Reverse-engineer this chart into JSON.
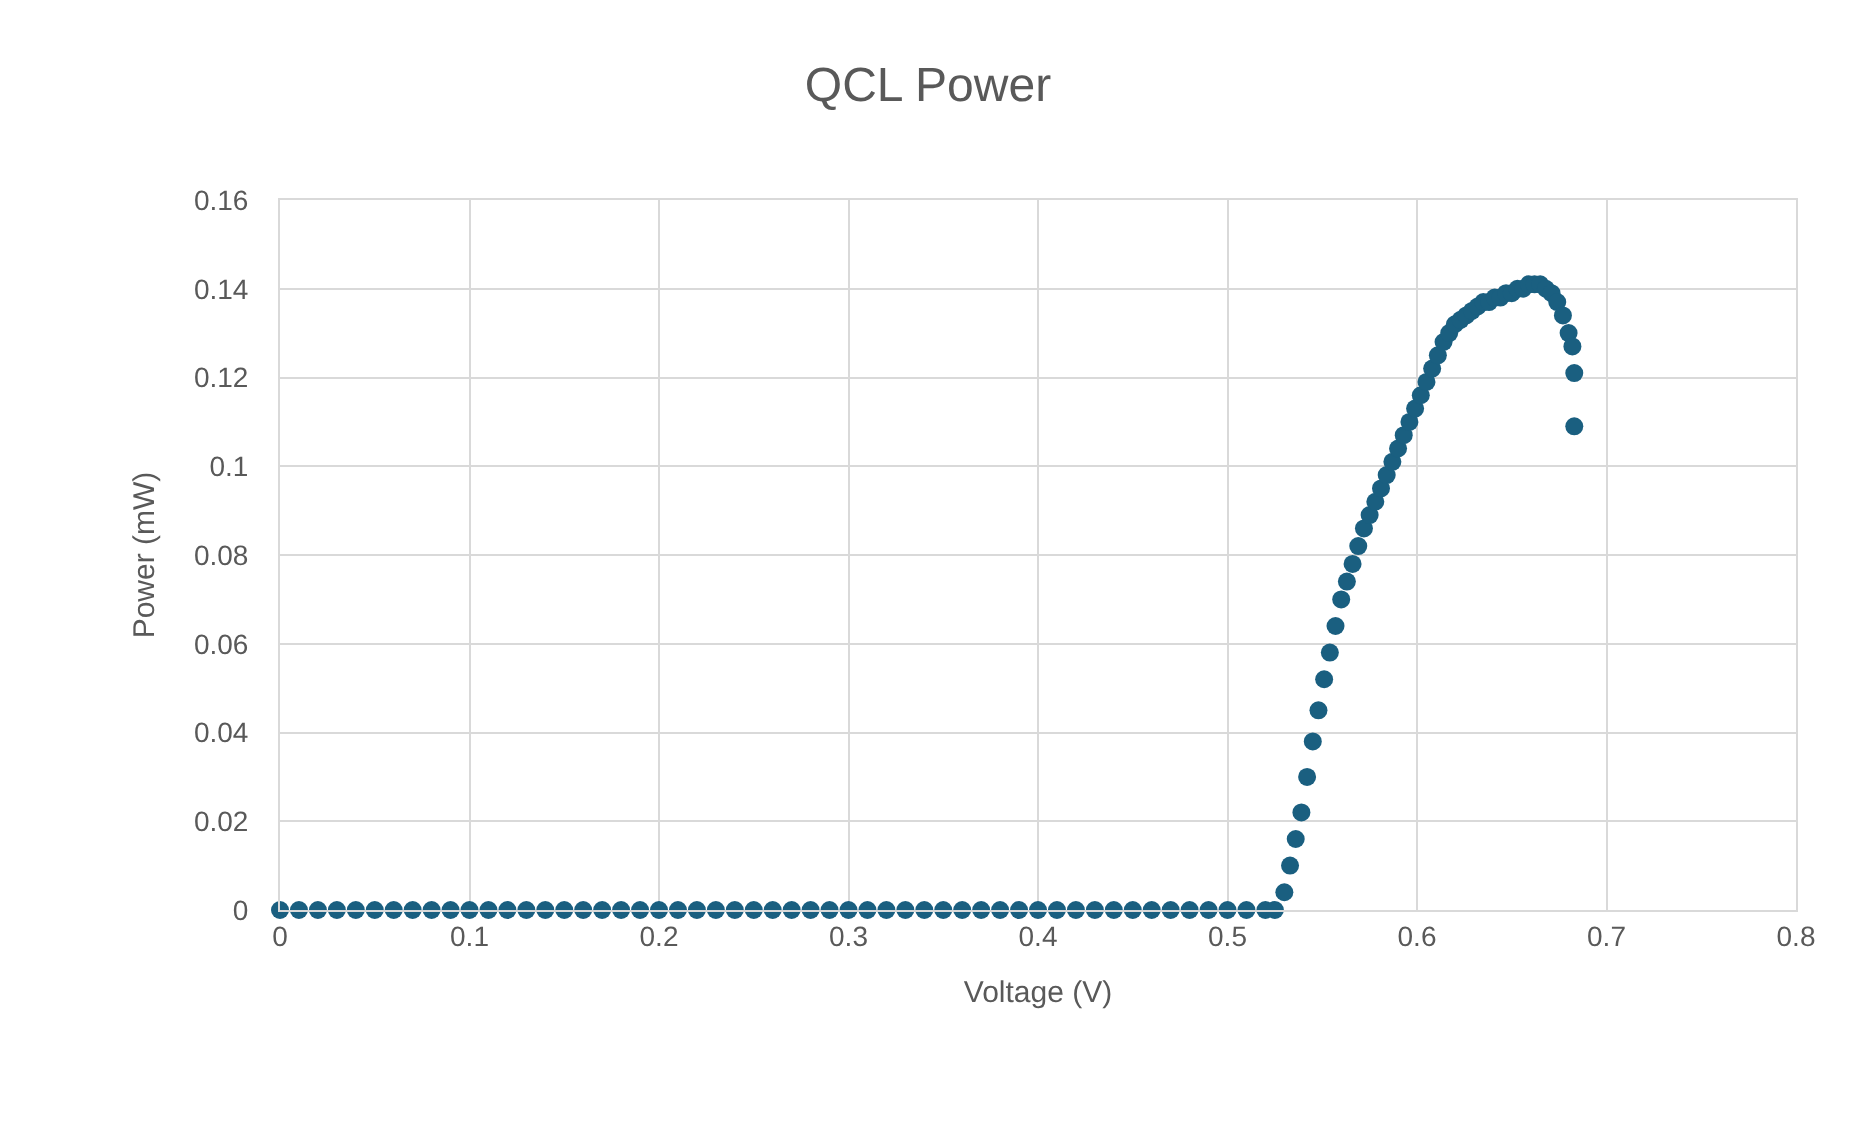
{
  "chart_data": {
    "type": "scatter",
    "title": "QCL Power",
    "xlabel": "Voltage (V)",
    "ylabel": "Power (mW)",
    "x": [
      0,
      0.01,
      0.02,
      0.03,
      0.04,
      0.05,
      0.06,
      0.07,
      0.08,
      0.09,
      0.1,
      0.11,
      0.12,
      0.13,
      0.14,
      0.15,
      0.16,
      0.17,
      0.18,
      0.19,
      0.2,
      0.21,
      0.22,
      0.23,
      0.24,
      0.25,
      0.26,
      0.27,
      0.28,
      0.29,
      0.3,
      0.31,
      0.32,
      0.33,
      0.34,
      0.35,
      0.36,
      0.37,
      0.38,
      0.39,
      0.4,
      0.41,
      0.42,
      0.43,
      0.44,
      0.45,
      0.46,
      0.47,
      0.48,
      0.49,
      0.5,
      0.51,
      0.52,
      0.525,
      0.53,
      0.533,
      0.536,
      0.539,
      0.542,
      0.545,
      0.548,
      0.551,
      0.554,
      0.557,
      0.56,
      0.563,
      0.566,
      0.569,
      0.572,
      0.575,
      0.578,
      0.581,
      0.584,
      0.587,
      0.59,
      0.593,
      0.596,
      0.599,
      0.602,
      0.605,
      0.608,
      0.611,
      0.614,
      0.617,
      0.62,
      0.623,
      0.626,
      0.629,
      0.632,
      0.635,
      0.638,
      0.641,
      0.644,
      0.647,
      0.65,
      0.653,
      0.656,
      0.659,
      0.662,
      0.665,
      0.668,
      0.671,
      0.674,
      0.677,
      0.68,
      0.682,
      0.683,
      0.683
    ],
    "values": [
      0,
      0,
      0,
      0,
      0,
      0,
      0,
      0,
      0,
      0,
      0,
      0,
      0,
      0,
      0,
      0,
      0,
      0,
      0,
      0,
      0,
      0,
      0,
      0,
      0,
      0,
      0,
      0,
      0,
      0,
      0,
      0,
      0,
      0,
      0,
      0,
      0,
      0,
      0,
      0,
      0,
      0,
      0,
      0,
      0,
      0,
      0,
      0,
      0,
      0,
      0,
      0,
      0,
      0,
      0.004,
      0.01,
      0.016,
      0.022,
      0.03,
      0.038,
      0.045,
      0.052,
      0.058,
      0.064,
      0.07,
      0.074,
      0.078,
      0.082,
      0.086,
      0.089,
      0.092,
      0.095,
      0.098,
      0.101,
      0.104,
      0.107,
      0.11,
      0.113,
      0.116,
      0.119,
      0.122,
      0.125,
      0.128,
      0.13,
      0.132,
      0.133,
      0.134,
      0.135,
      0.136,
      0.137,
      0.137,
      0.138,
      0.138,
      0.139,
      0.139,
      0.14,
      0.14,
      0.141,
      0.141,
      0.141,
      0.14,
      0.139,
      0.137,
      0.134,
      0.13,
      0.127,
      0.121,
      0.109
    ],
    "color": "#1a5f80",
    "marker": "circle",
    "grid": true,
    "xlim": [
      0,
      0.8
    ],
    "xticks": [
      0,
      0.1,
      0.2,
      0.3,
      0.4,
      0.5,
      0.6,
      0.7,
      0.8
    ],
    "ylim": [
      0,
      0.16
    ],
    "yticks": [
      0,
      0.02,
      0.04,
      0.06,
      0.08,
      0.1,
      0.12,
      0.14,
      0.16
    ]
  }
}
